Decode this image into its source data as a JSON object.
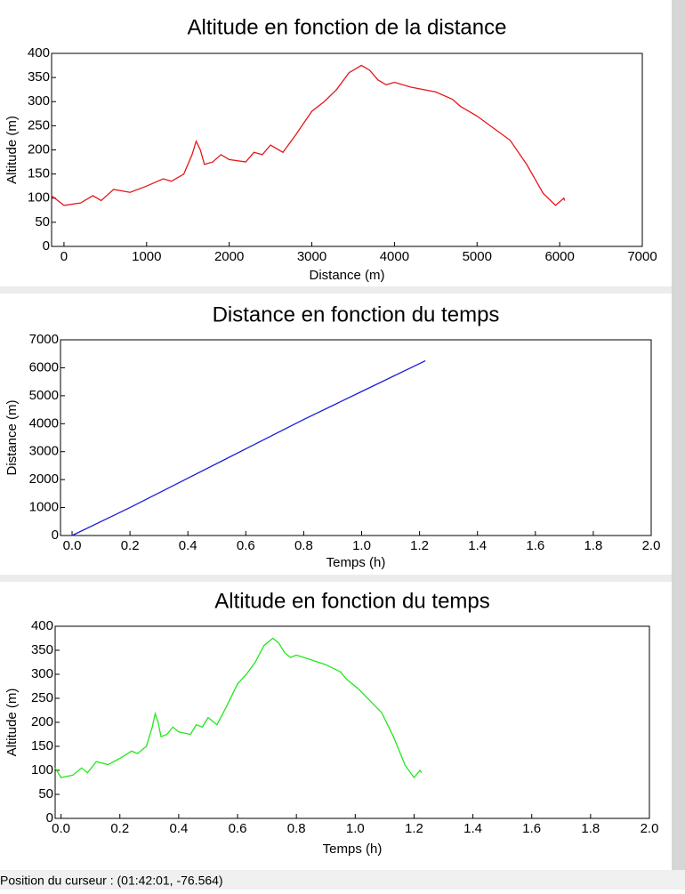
{
  "chart_data": [
    {
      "type": "line",
      "title": "Altitude en fonction de la distance",
      "x_label": "Distance (m)",
      "y_label": "Altitude (m)",
      "color": "#e8141c",
      "xlim": [
        -150,
        7000
      ],
      "xticks": [
        0,
        1000,
        2000,
        3000,
        4000,
        5000,
        6000,
        7000
      ],
      "ylim": [
        0,
        400
      ],
      "yticks": [
        0,
        50,
        100,
        150,
        200,
        250,
        300,
        350,
        400
      ],
      "x": [
        -150,
        0,
        200,
        350,
        450,
        600,
        800,
        1000,
        1200,
        1300,
        1450,
        1550,
        1600,
        1650,
        1700,
        1800,
        1900,
        2000,
        2200,
        2300,
        2400,
        2500,
        2650,
        2800,
        2900,
        3000,
        3150,
        3300,
        3450,
        3600,
        3700,
        3800,
        3900,
        4000,
        4200,
        4500,
        4700,
        4800,
        5000,
        5200,
        5400,
        5600,
        5700,
        5800,
        5950,
        6050,
        6060
      ],
      "values": [
        105,
        85,
        90,
        105,
        95,
        118,
        112,
        125,
        140,
        135,
        150,
        190,
        218,
        200,
        170,
        175,
        190,
        180,
        175,
        195,
        190,
        210,
        195,
        230,
        255,
        280,
        300,
        325,
        360,
        375,
        365,
        345,
        335,
        340,
        330,
        320,
        305,
        290,
        270,
        245,
        220,
        170,
        140,
        110,
        85,
        100,
        95
      ]
    },
    {
      "type": "line",
      "title": "Distance en fonction du temps",
      "x_label": "Temps (h)",
      "y_label": "Distance (m)",
      "color": "#1a1adc",
      "xlim": [
        -0.04,
        2.0
      ],
      "xticks": [
        {
          "value": 0,
          "label": "0.0"
        },
        {
          "value": 0.2,
          "label": "0.2"
        },
        {
          "value": 0.4,
          "label": "0.4"
        },
        {
          "value": 0.6,
          "label": "0.6"
        },
        {
          "value": 0.8,
          "label": "0.8"
        },
        {
          "value": 1,
          "label": "1.0"
        },
        {
          "value": 1.2,
          "label": "1.2"
        },
        {
          "value": 1.4,
          "label": "1.4"
        },
        {
          "value": 1.6,
          "label": "1.6"
        },
        {
          "value": 1.8,
          "label": "1.8"
        },
        {
          "value": 2,
          "label": "2.0"
        }
      ],
      "ylim": [
        0,
        7000
      ],
      "yticks": [
        0,
        1000,
        2000,
        3000,
        4000,
        5000,
        6000,
        7000
      ],
      "x": [
        0,
        0.2,
        0.4,
        0.6,
        0.8,
        1.0,
        1.22
      ],
      "values": [
        0,
        1000,
        2050,
        3100,
        4150,
        5150,
        6250
      ]
    },
    {
      "type": "line",
      "title": "Altitude en fonction du temps",
      "x_label": "Temps (h)",
      "y_label": "Altitude (m)",
      "color": "#22e81c",
      "xlim": [
        -0.02,
        2.0
      ],
      "xticks": [
        {
          "value": 0,
          "label": "0.0"
        },
        {
          "value": 0.2,
          "label": "0.2"
        },
        {
          "value": 0.4,
          "label": "0.4"
        },
        {
          "value": 0.6,
          "label": "0.6"
        },
        {
          "value": 0.8,
          "label": "0.8"
        },
        {
          "value": 1,
          "label": "1.0"
        },
        {
          "value": 1.2,
          "label": "1.2"
        },
        {
          "value": 1.4,
          "label": "1.4"
        },
        {
          "value": 1.6,
          "label": "1.6"
        },
        {
          "value": 1.8,
          "label": "1.8"
        },
        {
          "value": 2,
          "label": "2.0"
        }
      ],
      "ylim": [
        0,
        400
      ],
      "yticks": [
        0,
        50,
        100,
        150,
        200,
        250,
        300,
        350,
        400
      ],
      "x": [
        -0.02,
        0.0,
        0.04,
        0.07,
        0.09,
        0.12,
        0.16,
        0.2,
        0.24,
        0.26,
        0.29,
        0.31,
        0.32,
        0.33,
        0.34,
        0.36,
        0.38,
        0.4,
        0.44,
        0.46,
        0.48,
        0.5,
        0.53,
        0.56,
        0.58,
        0.6,
        0.63,
        0.66,
        0.69,
        0.72,
        0.74,
        0.76,
        0.78,
        0.8,
        0.85,
        0.9,
        0.95,
        0.97,
        1.01,
        1.05,
        1.09,
        1.13,
        1.15,
        1.17,
        1.2,
        1.22,
        1.225
      ],
      "values": [
        105,
        85,
        90,
        105,
        95,
        118,
        112,
        125,
        140,
        135,
        150,
        190,
        218,
        200,
        170,
        175,
        190,
        180,
        175,
        195,
        190,
        210,
        195,
        230,
        255,
        280,
        300,
        325,
        360,
        375,
        365,
        345,
        335,
        340,
        330,
        320,
        305,
        290,
        270,
        245,
        220,
        170,
        140,
        110,
        85,
        100,
        95
      ]
    }
  ],
  "status_bar": "Position du curseur : (01:42:01, -76.564)"
}
